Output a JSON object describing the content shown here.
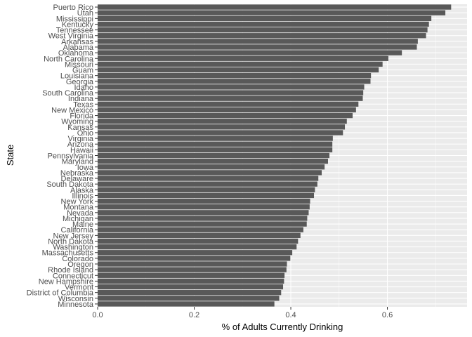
{
  "chart_data": {
    "type": "bar",
    "orientation": "horizontal",
    "xlabel": "% of Adults Currently Drinking",
    "ylabel": "State",
    "xlim": [
      0,
      0.765
    ],
    "xticks": [
      0.0,
      0.2,
      0.4,
      0.6
    ],
    "xtick_labels": [
      "0.0",
      "0.2",
      "0.4",
      "0.6"
    ],
    "grid": true,
    "colors": {
      "bar": "#595959",
      "panel": "#ebebeb",
      "grid_major": "#ffffff"
    },
    "categories": [
      "Puerto Rico",
      "Utah",
      "Mississippi",
      "Kentucky",
      "Tennessee",
      "West Virginia",
      "Arkansas",
      "Alabama",
      "Oklahoma",
      "North Carolina",
      "Missouri",
      "Guam",
      "Louisiana",
      "Georgia",
      "Idaho",
      "South Carolina",
      "Indiana",
      "Texas",
      "New Mexico",
      "Florida",
      "Wyoming",
      "Kansas",
      "Ohio",
      "Virginia",
      "Arizona",
      "Hawaii",
      "Pennsylvania",
      "Maryland",
      "Iowa",
      "Nebraska",
      "Delaware",
      "South Dakota",
      "Alaska",
      "Illinois",
      "New York",
      "Montana",
      "Nevada",
      "Michigan",
      "Maine",
      "California",
      "New Jersey",
      "North Dakota",
      "Washington",
      "Massachusetts",
      "Colorado",
      "Oregon",
      "Rhode Island",
      "Connecticut",
      "New Hampshire",
      "Vermont",
      "District of Columbia",
      "Wisconsin",
      "Minnesota"
    ],
    "values": [
      0.732,
      0.72,
      0.691,
      0.686,
      0.683,
      0.68,
      0.663,
      0.661,
      0.63,
      0.602,
      0.59,
      0.582,
      0.566,
      0.565,
      0.552,
      0.55,
      0.549,
      0.54,
      0.535,
      0.528,
      0.516,
      0.512,
      0.508,
      0.487,
      0.486,
      0.486,
      0.48,
      0.477,
      0.47,
      0.464,
      0.457,
      0.455,
      0.45,
      0.448,
      0.44,
      0.439,
      0.437,
      0.434,
      0.433,
      0.426,
      0.42,
      0.415,
      0.412,
      0.403,
      0.399,
      0.392,
      0.391,
      0.387,
      0.386,
      0.384,
      0.38,
      0.376,
      0.366
    ]
  }
}
